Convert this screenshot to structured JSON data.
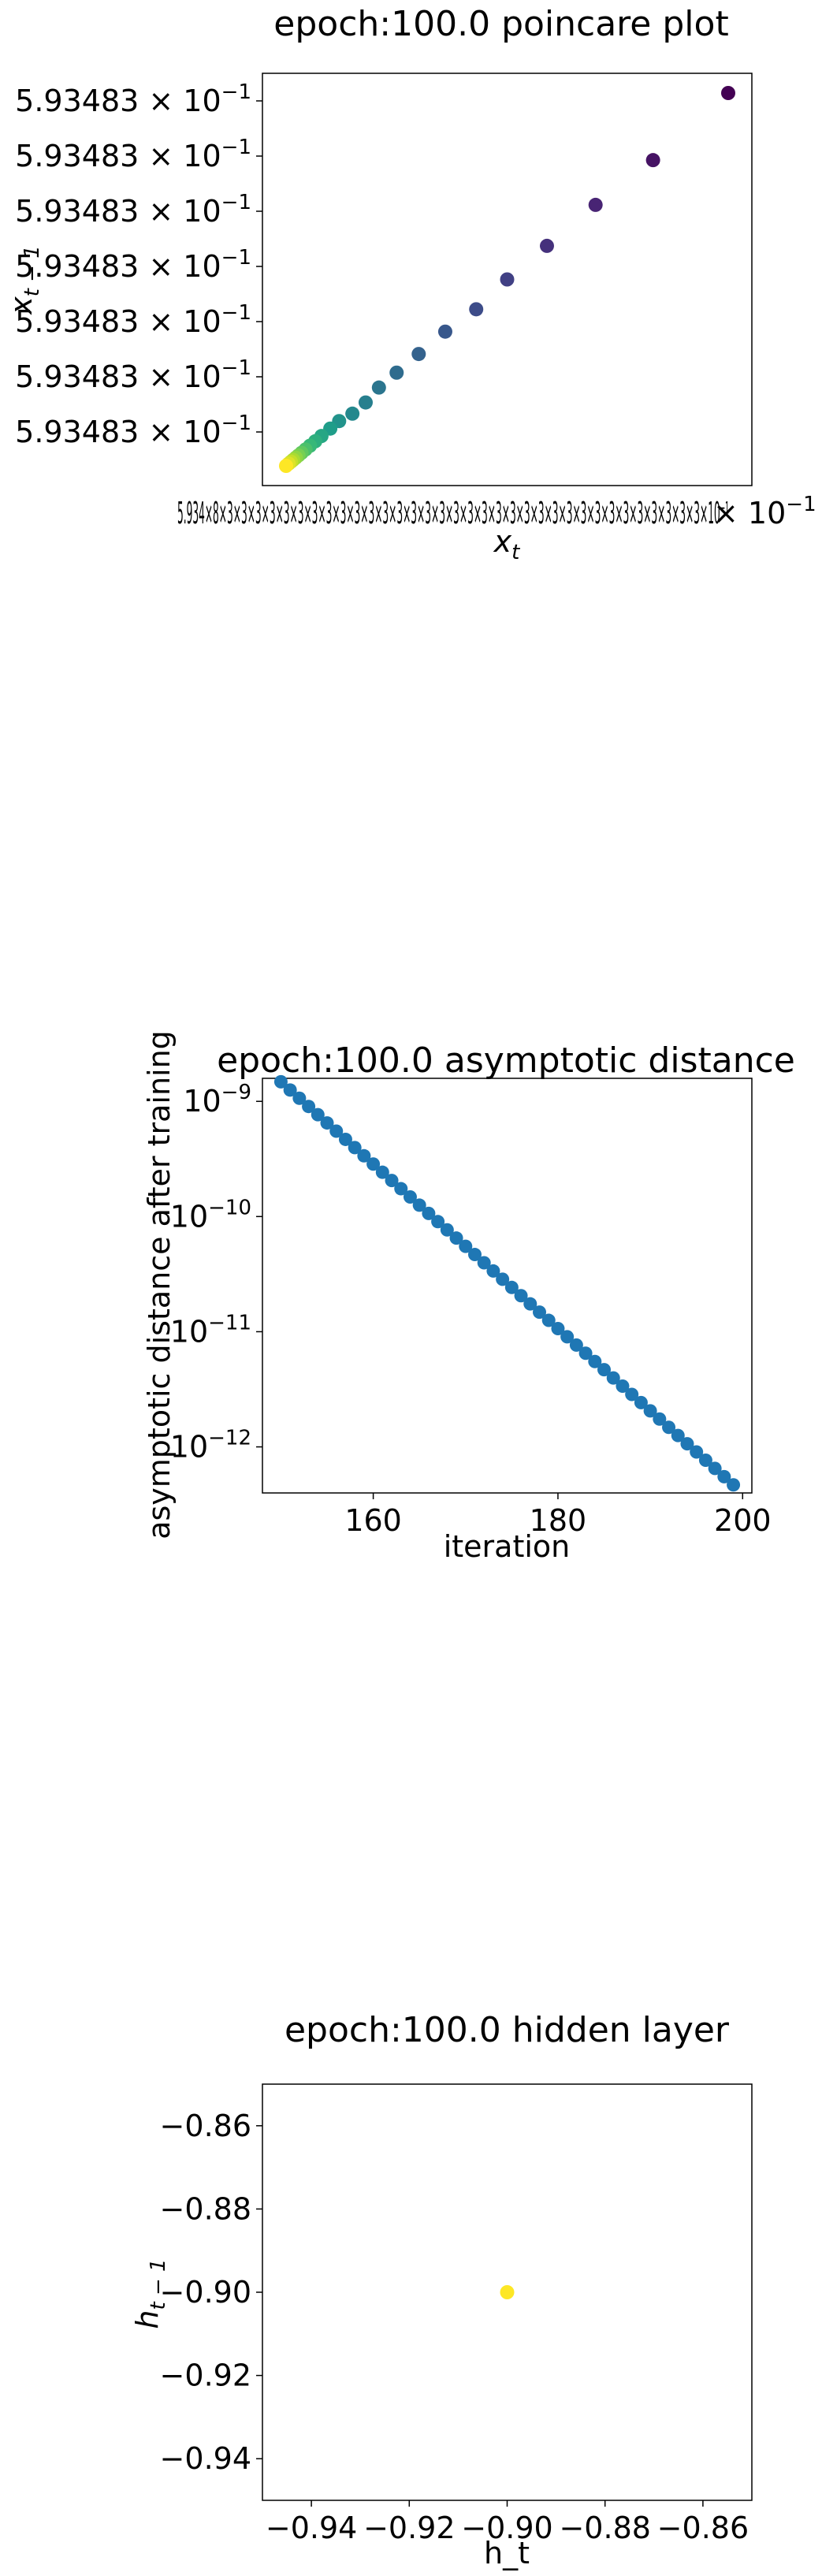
{
  "chart_data": [
    {
      "type": "scatter",
      "title": "epoch:100.0 poincare plot",
      "xlabel_base": "x",
      "xlabel_sub": "t",
      "ylabel_base": "x",
      "ylabel_sub": "t − 1",
      "colormap": "viridis",
      "y_tick_label": "5.93483 × 10",
      "y_tick_exp": "−1",
      "x_tick_text": "5.934×8×3×3×3×3×3×3×3×3×3×3×3×3×3×3×3×3×3×3×3×3×3×3×3×3×3×3×3×3×3×3×3×3×3×3×10⁻¹",
      "x_tick_tail": "× 10",
      "x_tick_tail_exp": "−1",
      "note": "points lie on a diagonal; values differ only beyond the shown precision",
      "points": [
        {
          "x": 1.0,
          "y": 1.0,
          "c": 0.0
        },
        {
          "x": 0.83,
          "y": 0.82,
          "c": 0.05
        },
        {
          "x": 0.7,
          "y": 0.7,
          "c": 0.1
        },
        {
          "x": 0.59,
          "y": 0.59,
          "c": 0.14
        },
        {
          "x": 0.5,
          "y": 0.5,
          "c": 0.19
        },
        {
          "x": 0.43,
          "y": 0.42,
          "c": 0.23
        },
        {
          "x": 0.36,
          "y": 0.36,
          "c": 0.27
        },
        {
          "x": 0.3,
          "y": 0.3,
          "c": 0.31
        },
        {
          "x": 0.25,
          "y": 0.25,
          "c": 0.35
        },
        {
          "x": 0.21,
          "y": 0.21,
          "c": 0.39
        },
        {
          "x": 0.18,
          "y": 0.17,
          "c": 0.43
        },
        {
          "x": 0.15,
          "y": 0.14,
          "c": 0.47
        },
        {
          "x": 0.12,
          "y": 0.12,
          "c": 0.51
        },
        {
          "x": 0.1,
          "y": 0.1,
          "c": 0.55
        },
        {
          "x": 0.08,
          "y": 0.08,
          "c": 0.59
        },
        {
          "x": 0.066,
          "y": 0.066,
          "c": 0.63
        },
        {
          "x": 0.054,
          "y": 0.054,
          "c": 0.67
        },
        {
          "x": 0.044,
          "y": 0.044,
          "c": 0.71
        },
        {
          "x": 0.035,
          "y": 0.035,
          "c": 0.75
        },
        {
          "x": 0.028,
          "y": 0.028,
          "c": 0.79
        },
        {
          "x": 0.022,
          "y": 0.022,
          "c": 0.83
        },
        {
          "x": 0.016,
          "y": 0.016,
          "c": 0.87
        },
        {
          "x": 0.011,
          "y": 0.011,
          "c": 0.91
        },
        {
          "x": 0.006,
          "y": 0.006,
          "c": 0.95
        },
        {
          "x": 0.0,
          "y": 0.0,
          "c": 1.0
        }
      ]
    },
    {
      "type": "scatter",
      "title": "epoch:100.0 asymptotic distance",
      "xlabel": "iteration",
      "ylabel": "asymptotic distance after training",
      "yscale": "log",
      "color": "#1f77b4",
      "xlim": [
        148,
        201
      ],
      "ylim_log10": [
        -12.4,
        -8.8
      ],
      "xticks": [
        "160",
        "180",
        "200"
      ],
      "yticks": [
        {
          "base": "10",
          "exp": "−9",
          "v": -9
        },
        {
          "base": "10",
          "exp": "−10",
          "v": -10
        },
        {
          "base": "10",
          "exp": "−11",
          "v": -11
        },
        {
          "base": "10",
          "exp": "−12",
          "v": -12
        }
      ],
      "x_start": 150,
      "x_end": 199,
      "log10_start": -8.83,
      "log10_end": -12.33
    },
    {
      "type": "scatter",
      "title": "epoch:100.0 hidden layer",
      "xlabel": "h_t",
      "ylabel_base": "h",
      "ylabel_sub": "t − 1",
      "xlim": [
        -0.95,
        -0.85
      ],
      "ylim": [
        -0.95,
        -0.85
      ],
      "xticks": [
        "−0.94",
        "−0.92",
        "−0.90",
        "−0.88",
        "−0.86"
      ],
      "yticks": [
        "−0.86",
        "−0.88",
        "−0.90",
        "−0.92",
        "−0.94"
      ],
      "points": [
        {
          "x": -0.9,
          "y": -0.9
        }
      ],
      "color": "#fde725"
    }
  ]
}
